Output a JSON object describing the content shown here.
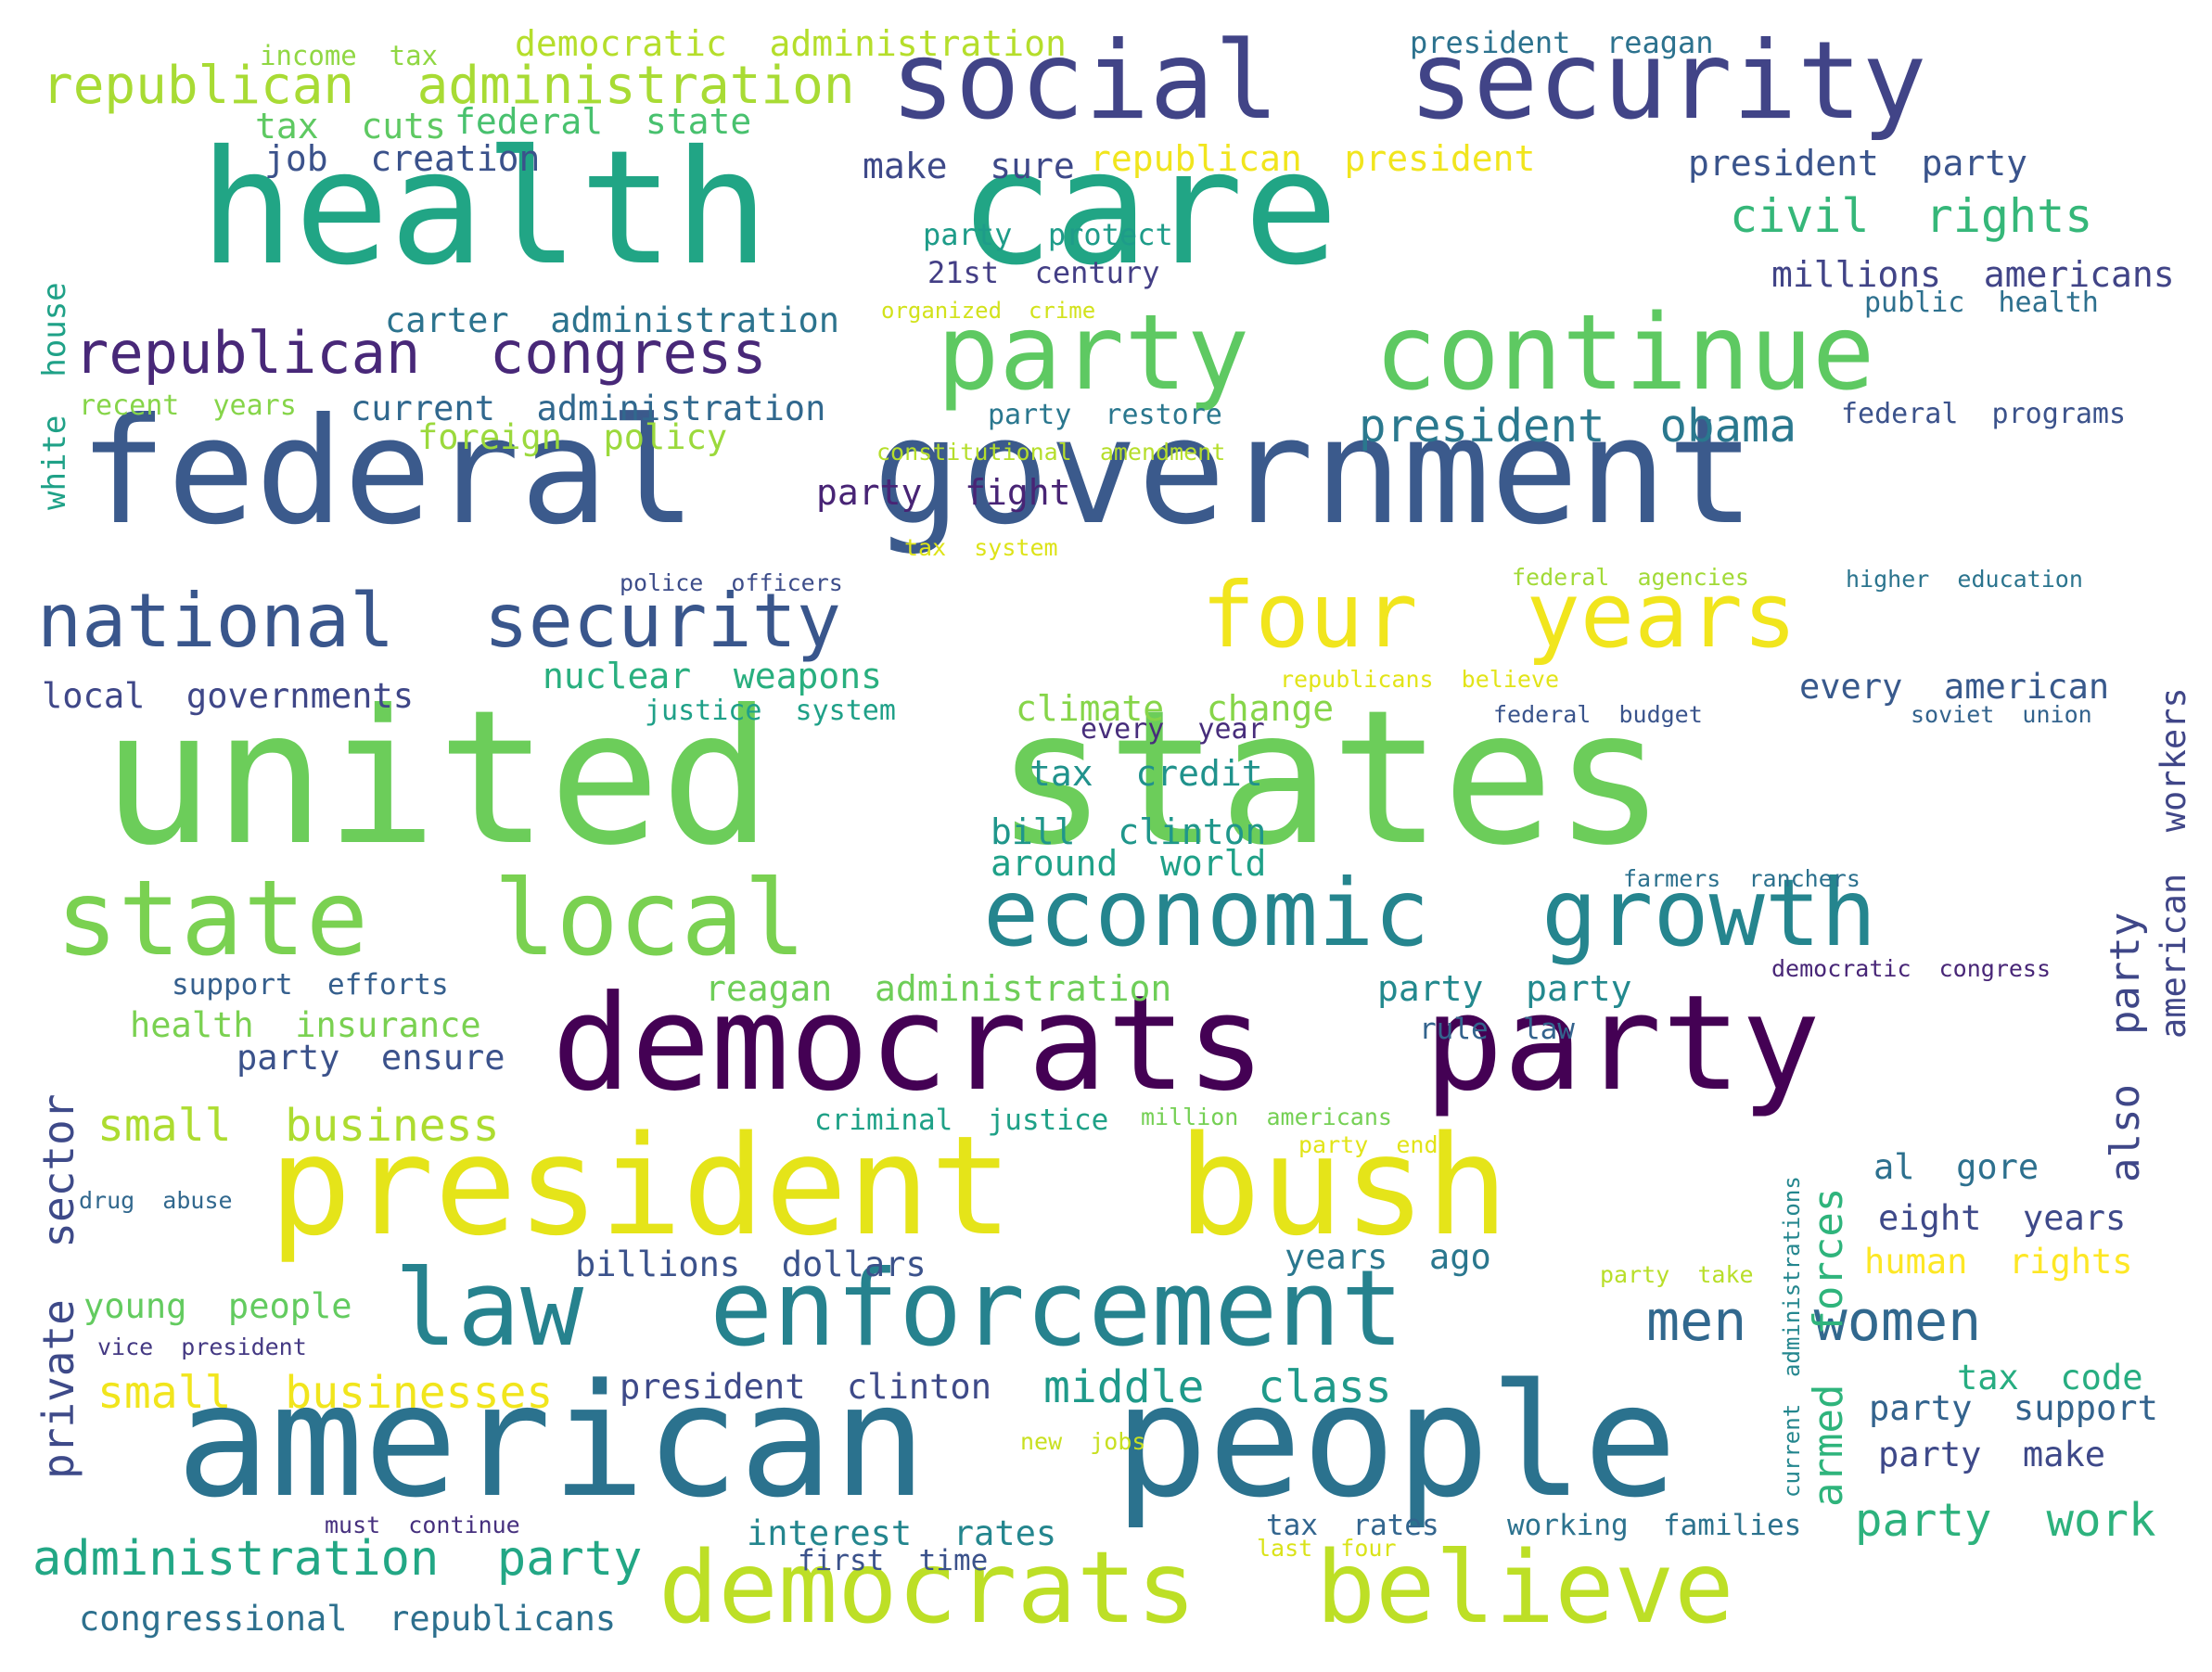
{
  "words": [
    {
      "id": "united-states",
      "text": "united  states",
      "color": "#6ccd5a"
    },
    {
      "id": "federal-government",
      "text": "federal  government",
      "color": "#3b5a8c"
    },
    {
      "id": "health-care",
      "text": "health  care",
      "color": "#21a585"
    },
    {
      "id": "american-people",
      "text": "american  people",
      "color": "#2b728e"
    },
    {
      "id": "president-bush",
      "text": "president  bush",
      "color": "#e5e419"
    },
    {
      "id": "democrats-party",
      "text": "democrats  party",
      "color": "#440154"
    },
    {
      "id": "social-security",
      "text": "social  security",
      "color": "#414487"
    },
    {
      "id": "party-continue",
      "text": "party  continue",
      "color": "#5ec962"
    },
    {
      "id": "law-enforcement",
      "text": "law  enforcement",
      "color": "#26828e"
    },
    {
      "id": "state-local",
      "text": "state  local",
      "color": "#7ad151"
    },
    {
      "id": "democrats-believe",
      "text": "democrats  believe",
      "color": "#bddf26"
    },
    {
      "id": "economic-growth",
      "text": "economic  growth",
      "color": "#25858e"
    },
    {
      "id": "four-years",
      "text": "four  years",
      "color": "#f1e51d"
    },
    {
      "id": "national-security",
      "text": "national  security",
      "color": "#39568c"
    },
    {
      "id": "republican-congress",
      "text": "republican  congress",
      "color": "#482878"
    },
    {
      "id": "republican-administration",
      "text": "republican  administration",
      "color": "#a8db34"
    },
    {
      "id": "president-obama",
      "text": "president  obama",
      "color": "#2a788e"
    },
    {
      "id": "men-women",
      "text": "men  women",
      "color": "#31688e"
    },
    {
      "id": "administration-party",
      "text": "administration  party",
      "color": "#22a785"
    },
    {
      "id": "civil-rights",
      "text": "civil  rights",
      "color": "#35b779"
    },
    {
      "id": "small-business",
      "text": "small  business",
      "color": "#addc30"
    },
    {
      "id": "small-businesses",
      "text": "small  businesses",
      "color": "#f1e51d"
    },
    {
      "id": "middle-class",
      "text": "middle  class",
      "color": "#1f9a8a"
    },
    {
      "id": "party-work",
      "text": "party  work",
      "color": "#2db27d"
    },
    {
      "id": "private-sector",
      "text": "private  sector",
      "color": "#3e4a89",
      "rot": true
    },
    {
      "id": "armed-forces",
      "text": "armed  forces",
      "color": "#2fb47c",
      "rot": true
    },
    {
      "id": "white-house",
      "text": "white  house",
      "color": "#1fa187",
      "rot": true
    },
    {
      "id": "american-workers",
      "text": "american  workers",
      "color": "#404688",
      "rot": true
    },
    {
      "id": "also-party",
      "text": "also  party",
      "color": "#3f4788",
      "rot": true
    },
    {
      "id": "current-administrations",
      "text": "current  administrations",
      "color": "#24868e",
      "rot": true
    },
    {
      "id": "democratic-administration",
      "text": "democratic  administration",
      "color": "#b5de2b"
    },
    {
      "id": "income-tax",
      "text": "income  tax",
      "color": "#90d743"
    },
    {
      "id": "president-reagan",
      "text": "president  reagan",
      "color": "#2c728e"
    },
    {
      "id": "federal-state",
      "text": "federal  state",
      "color": "#48c16e"
    },
    {
      "id": "tax-cuts",
      "text": "tax  cuts",
      "color": "#5ec962"
    },
    {
      "id": "job-creation",
      "text": "job  creation",
      "color": "#3b528b"
    },
    {
      "id": "make-sure",
      "text": "make  sure",
      "color": "#3e4989"
    },
    {
      "id": "republican-president",
      "text": "republican  president",
      "color": "#f1e51d"
    },
    {
      "id": "president-party",
      "text": "president  party",
      "color": "#3a548c"
    },
    {
      "id": "party-protect",
      "text": "party  protect",
      "color": "#1e9c89"
    },
    {
      "id": "21st-century",
      "text": "21st  century",
      "color": "#433e85"
    },
    {
      "id": "millions-americans",
      "text": "millions  americans",
      "color": "#414487"
    },
    {
      "id": "organized-crime",
      "text": "organized  crime",
      "color": "#d2e21b"
    },
    {
      "id": "public-health",
      "text": "public  health",
      "color": "#2d708e"
    },
    {
      "id": "carter-administration",
      "text": "carter  administration",
      "color": "#2c738e"
    },
    {
      "id": "recent-years",
      "text": "recent  years",
      "color": "#86d549"
    },
    {
      "id": "current-administration",
      "text": "current  administration",
      "color": "#31688e"
    },
    {
      "id": "party-restore",
      "text": "party  restore",
      "color": "#2a778e"
    },
    {
      "id": "federal-programs",
      "text": "federal  programs",
      "color": "#3b528b"
    },
    {
      "id": "foreign-policy",
      "text": "foreign  policy",
      "color": "#9bd93c"
    },
    {
      "id": "constitutional-amendment",
      "text": "constitutional  amendment",
      "color": "#b5de2b"
    },
    {
      "id": "party-fight",
      "text": "party  fight",
      "color": "#482475"
    },
    {
      "id": "tax-system",
      "text": "tax  system",
      "color": "#dde318"
    },
    {
      "id": "police-officers",
      "text": "police  officers",
      "color": "#3d4d8a"
    },
    {
      "id": "federal-agencies",
      "text": "federal  agencies",
      "color": "#a2da37"
    },
    {
      "id": "higher-education",
      "text": "higher  education",
      "color": "#2b748e"
    },
    {
      "id": "nuclear-weapons",
      "text": "nuclear  weapons",
      "color": "#29af7f"
    },
    {
      "id": "republicans-believe",
      "text": "republicans  believe",
      "color": "#e2e418"
    },
    {
      "id": "local-governments",
      "text": "local  governments",
      "color": "#3f4788"
    },
    {
      "id": "justice-system",
      "text": "justice  system",
      "color": "#1fa088"
    },
    {
      "id": "climate-change",
      "text": "climate  change",
      "color": "#86d549"
    },
    {
      "id": "every-year",
      "text": "every  year",
      "color": "#472d7b"
    },
    {
      "id": "federal-budget",
      "text": "federal  budget",
      "color": "#3a548c"
    },
    {
      "id": "every-american",
      "text": "every  american",
      "color": "#38598c"
    },
    {
      "id": "soviet-union",
      "text": "soviet  union",
      "color": "#33638d"
    },
    {
      "id": "tax-credit",
      "text": "tax  credit",
      "color": "#20928c"
    },
    {
      "id": "bill-clinton",
      "text": "bill  clinton",
      "color": "#1f968b"
    },
    {
      "id": "around-world",
      "text": "around  world",
      "color": "#1fa188"
    },
    {
      "id": "farmers-ranchers",
      "text": "farmers  ranchers",
      "color": "#2c718e"
    },
    {
      "id": "support-efforts",
      "text": "support  efforts",
      "color": "#355f8d"
    },
    {
      "id": "reagan-administration",
      "text": "reagan  administration",
      "color": "#6ece58"
    },
    {
      "id": "party-party",
      "text": "party  party",
      "color": "#23898e"
    },
    {
      "id": "democratic-congress",
      "text": "democratic  congress",
      "color": "#482677"
    },
    {
      "id": "health-insurance",
      "text": "health  insurance",
      "color": "#7ad151"
    },
    {
      "id": "party-ensure",
      "text": "party  ensure",
      "color": "#3b528b"
    },
    {
      "id": "rule-law",
      "text": "rule  law",
      "color": "#33638d"
    },
    {
      "id": "criminal-justice",
      "text": "criminal  justice",
      "color": "#1fa187"
    },
    {
      "id": "million-americans",
      "text": "million  americans",
      "color": "#75d054"
    },
    {
      "id": "party-end",
      "text": "party  end",
      "color": "#e2e418"
    },
    {
      "id": "al-gore",
      "text": "al  gore",
      "color": "#2d708e"
    },
    {
      "id": "drug-abuse",
      "text": "drug  abuse",
      "color": "#31688e"
    },
    {
      "id": "eight-years",
      "text": "eight  years",
      "color": "#3e4989"
    },
    {
      "id": "billions-dollars",
      "text": "billions  dollars",
      "color": "#3b528b"
    },
    {
      "id": "years-ago",
      "text": "years  ago",
      "color": "#2a778e"
    },
    {
      "id": "human-rights",
      "text": "human  rights",
      "color": "#fde725"
    },
    {
      "id": "party-take",
      "text": "party  take",
      "color": "#b8de29"
    },
    {
      "id": "young-people",
      "text": "young  people",
      "color": "#63cb5f"
    },
    {
      "id": "vice-president",
      "text": "vice  president",
      "color": "#443983"
    },
    {
      "id": "president-clinton",
      "text": "president  clinton",
      "color": "#3e4a89"
    },
    {
      "id": "tax-code",
      "text": "tax  code",
      "color": "#27ad81"
    },
    {
      "id": "party-support",
      "text": "party  support",
      "color": "#33638d"
    },
    {
      "id": "new-jobs",
      "text": "new  jobs",
      "color": "#c8e020"
    },
    {
      "id": "party-make",
      "text": "party  make",
      "color": "#3e4989"
    },
    {
      "id": "must-continue",
      "text": "must  continue",
      "color": "#46307e"
    },
    {
      "id": "interest-rates",
      "text": "interest  rates",
      "color": "#24868e"
    },
    {
      "id": "tax-rates",
      "text": "tax  rates",
      "color": "#32658e"
    },
    {
      "id": "working-families",
      "text": "working  families",
      "color": "#2c728e"
    },
    {
      "id": "first-time",
      "text": "first  time",
      "color": "#3b528b"
    },
    {
      "id": "last-four",
      "text": "last  four",
      "color": "#dae319"
    },
    {
      "id": "congressional-republicans",
      "text": "congressional  republicans",
      "color": "#2d708e"
    }
  ]
}
